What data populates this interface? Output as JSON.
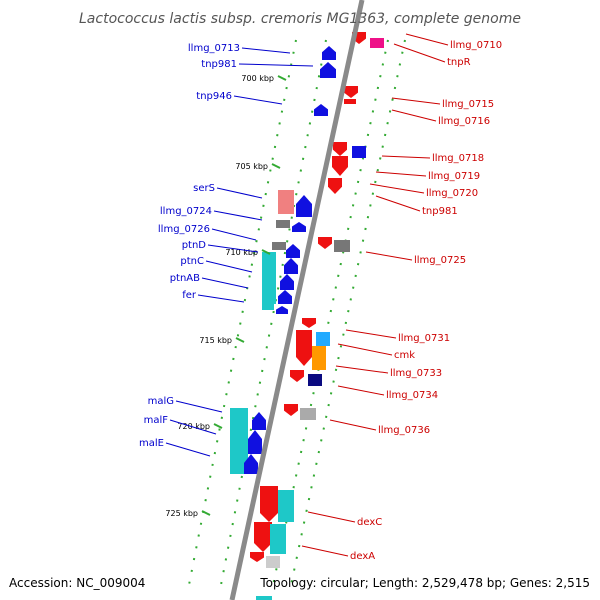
{
  "title": "Lactococcus lactis subsp. cremoris MG1363, complete genome",
  "footer": {
    "accession": "Accession: NC_009004",
    "summary": "Topology: circular; Length: 2,529,478 bp; Genes: 2,515"
  },
  "colors": {
    "backbone": "#8a8a8a",
    "left_label": "#0000cc",
    "right_label": "#cc0000",
    "dots": "#33aa33",
    "cyan": "#1ec8c8",
    "blue": "#1010e0",
    "red": "#ee1111",
    "pink": "#ee88aa",
    "magenta": "#ee1188",
    "orange": "#ff9900",
    "grey": "#777777",
    "navy": "#0a0a80",
    "lightblue": "#22aaff"
  },
  "ticks": [
    "700 kbp",
    "705 kbp",
    "710 kbp",
    "715 kbp",
    "720 kbp",
    "725 kbp"
  ],
  "left_labels": [
    "llmg_0713",
    "tnp981",
    "tnp946",
    "serS",
    "llmg_0724",
    "llmg_0726",
    "ptnD",
    "ptnC",
    "ptnAB",
    "fer",
    "malG",
    "malF",
    "malE"
  ],
  "right_labels": [
    "llmg_0710",
    "tnpR",
    "llmg_0715",
    "llmg_0716",
    "llmg_0718",
    "llmg_0719",
    "llmg_0720",
    "tnp981",
    "llmg_0725",
    "llmg_0731",
    "cmk",
    "llmg_0733",
    "llmg_0734",
    "llmg_0736",
    "dexC",
    "dexA"
  ]
}
